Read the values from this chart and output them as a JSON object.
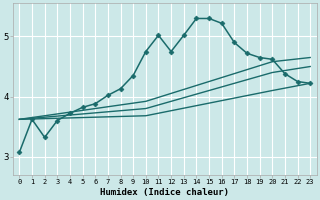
{
  "xlabel": "Humidex (Indice chaleur)",
  "background_color": "#cce8e8",
  "grid_color": "#ffffff",
  "line_color": "#1a6b6b",
  "xlim": [
    -0.5,
    23.5
  ],
  "ylim": [
    2.7,
    5.55
  ],
  "yticks": [
    3,
    4,
    5
  ],
  "xticks": [
    0,
    1,
    2,
    3,
    4,
    5,
    6,
    7,
    8,
    9,
    10,
    11,
    12,
    13,
    14,
    15,
    16,
    17,
    18,
    19,
    20,
    21,
    22,
    23
  ],
  "lines": [
    {
      "x": [
        0,
        1,
        2,
        3,
        4,
        5,
        6,
        7,
        8,
        9,
        10,
        11,
        12,
        13,
        14,
        15,
        16,
        17,
        18,
        19,
        20,
        21,
        22,
        23
      ],
      "y": [
        3.07,
        3.62,
        3.32,
        3.6,
        3.72,
        3.82,
        3.88,
        4.02,
        4.13,
        4.35,
        4.75,
        5.02,
        4.75,
        5.02,
        5.3,
        5.3,
        5.22,
        4.9,
        4.72,
        4.65,
        4.62,
        4.38,
        4.25,
        4.22
      ],
      "marker": "D",
      "markersize": 2.5,
      "linewidth": 1.1,
      "has_markers": true
    },
    {
      "x": [
        0,
        10,
        20,
        23
      ],
      "y": [
        3.62,
        3.92,
        4.58,
        4.65
      ],
      "marker": null,
      "markersize": 0,
      "linewidth": 1.0,
      "has_markers": false
    },
    {
      "x": [
        0,
        10,
        20,
        23
      ],
      "y": [
        3.62,
        3.8,
        4.4,
        4.5
      ],
      "marker": null,
      "markersize": 0,
      "linewidth": 1.0,
      "has_markers": false
    },
    {
      "x": [
        0,
        10,
        20,
        23
      ],
      "y": [
        3.62,
        3.68,
        4.1,
        4.22
      ],
      "marker": null,
      "markersize": 0,
      "linewidth": 1.0,
      "has_markers": false
    }
  ]
}
